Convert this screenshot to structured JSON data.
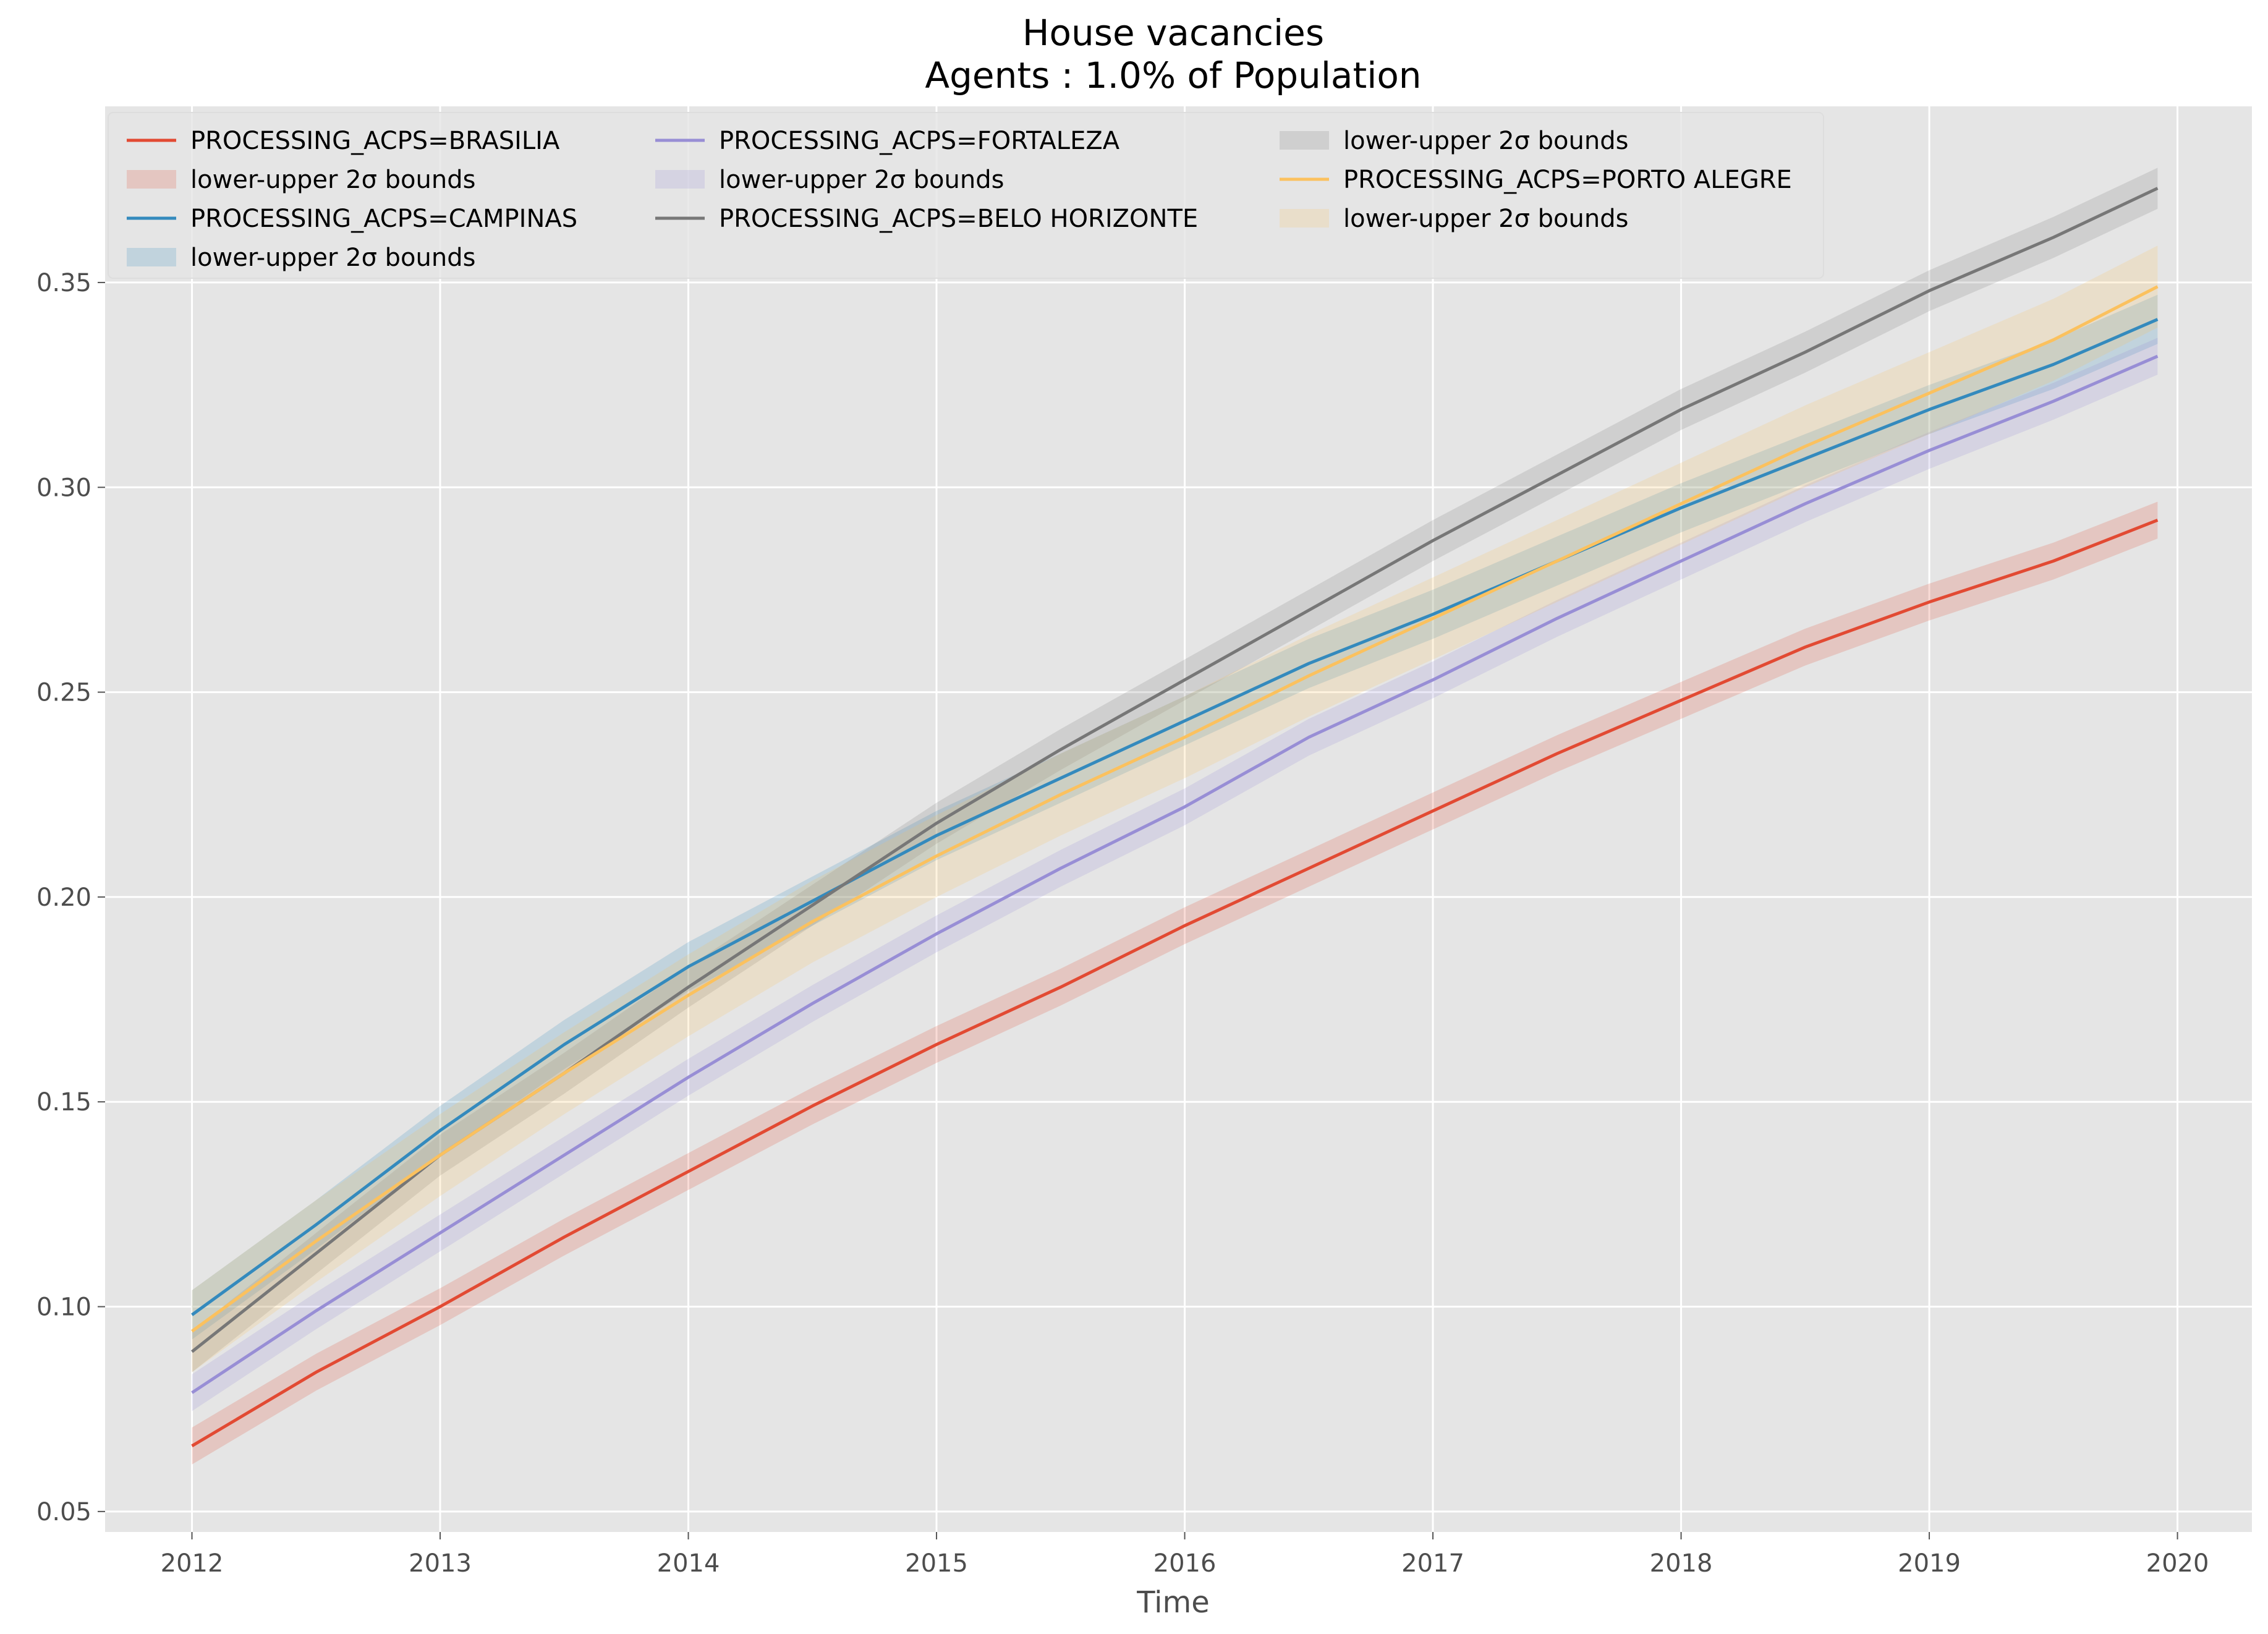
{
  "chart_data": {
    "type": "line",
    "title": "House vacancies",
    "subtitle": "Agents : 1.0% of Population",
    "xlabel": "Time",
    "ylabel": "",
    "xlim": [
      2011.65,
      2020.3
    ],
    "ylim": [
      0.045,
      0.393
    ],
    "x_ticks": [
      "2012",
      "2013",
      "2014",
      "2015",
      "2016",
      "2017",
      "2018",
      "2019",
      "2020"
    ],
    "y_ticks": [
      "0.05",
      "0.10",
      "0.15",
      "0.20",
      "0.25",
      "0.30",
      "0.35"
    ],
    "grid": true,
    "legend_position": "top-left",
    "band_label": "lower-upper 2σ bounds",
    "series": [
      {
        "name": "PROCESSING_ACPS=BRASILIA",
        "color": "#E24A33",
        "band_halfwidth": 0.0045,
        "x": [
          2012,
          2012.5,
          2013,
          2013.5,
          2014,
          2014.5,
          2015,
          2015.5,
          2016,
          2016.5,
          2017,
          2017.5,
          2018,
          2018.5,
          2019,
          2019.5,
          2019.92
        ],
        "y": [
          0.066,
          0.084,
          0.1,
          0.117,
          0.133,
          0.149,
          0.164,
          0.178,
          0.193,
          0.207,
          0.221,
          0.235,
          0.248,
          0.261,
          0.272,
          0.282,
          0.292
        ]
      },
      {
        "name": "PROCESSING_ACPS=CAMPINAS",
        "color": "#348ABD",
        "band_halfwidth": 0.006,
        "x": [
          2012,
          2012.5,
          2013,
          2013.5,
          2014,
          2014.5,
          2015,
          2015.5,
          2016,
          2016.5,
          2017,
          2017.5,
          2018,
          2018.5,
          2019,
          2019.5,
          2019.92
        ],
        "y": [
          0.098,
          0.12,
          0.143,
          0.164,
          0.183,
          0.199,
          0.215,
          0.229,
          0.243,
          0.257,
          0.269,
          0.282,
          0.295,
          0.307,
          0.319,
          0.33,
          0.341
        ]
      },
      {
        "name": "PROCESSING_ACPS=FORTALEZA",
        "color": "#988ED5",
        "band_halfwidth": 0.0045,
        "x": [
          2012,
          2012.5,
          2013,
          2013.5,
          2014,
          2014.5,
          2015,
          2015.5,
          2016,
          2016.5,
          2017,
          2017.5,
          2018,
          2018.5,
          2019,
          2019.5,
          2019.92
        ],
        "y": [
          0.079,
          0.099,
          0.118,
          0.137,
          0.156,
          0.174,
          0.191,
          0.207,
          0.222,
          0.239,
          0.253,
          0.268,
          0.282,
          0.296,
          0.309,
          0.321,
          0.332
        ]
      },
      {
        "name": "PROCESSING_ACPS=BELO HORIZONTE",
        "color": "#777777",
        "band_halfwidth": 0.005,
        "x": [
          2012,
          2012.5,
          2013,
          2013.5,
          2014,
          2014.5,
          2015,
          2015.5,
          2016,
          2016.5,
          2017,
          2017.5,
          2018,
          2018.5,
          2019,
          2019.5,
          2019.92
        ],
        "y": [
          0.089,
          0.113,
          0.137,
          0.157,
          0.178,
          0.198,
          0.218,
          0.236,
          0.253,
          0.27,
          0.287,
          0.303,
          0.319,
          0.333,
          0.348,
          0.361,
          0.373
        ]
      },
      {
        "name": "PROCESSING_ACPS=PORTO ALEGRE",
        "color": "#FBC15E",
        "band_halfwidth": 0.01,
        "x": [
          2012,
          2012.5,
          2013,
          2013.5,
          2014,
          2014.5,
          2015,
          2015.5,
          2016,
          2016.5,
          2017,
          2017.5,
          2018,
          2018.5,
          2019,
          2019.5,
          2019.92
        ],
        "y": [
          0.094,
          0.116,
          0.137,
          0.157,
          0.176,
          0.194,
          0.21,
          0.225,
          0.239,
          0.254,
          0.268,
          0.282,
          0.296,
          0.31,
          0.323,
          0.336,
          0.349
        ]
      }
    ]
  }
}
